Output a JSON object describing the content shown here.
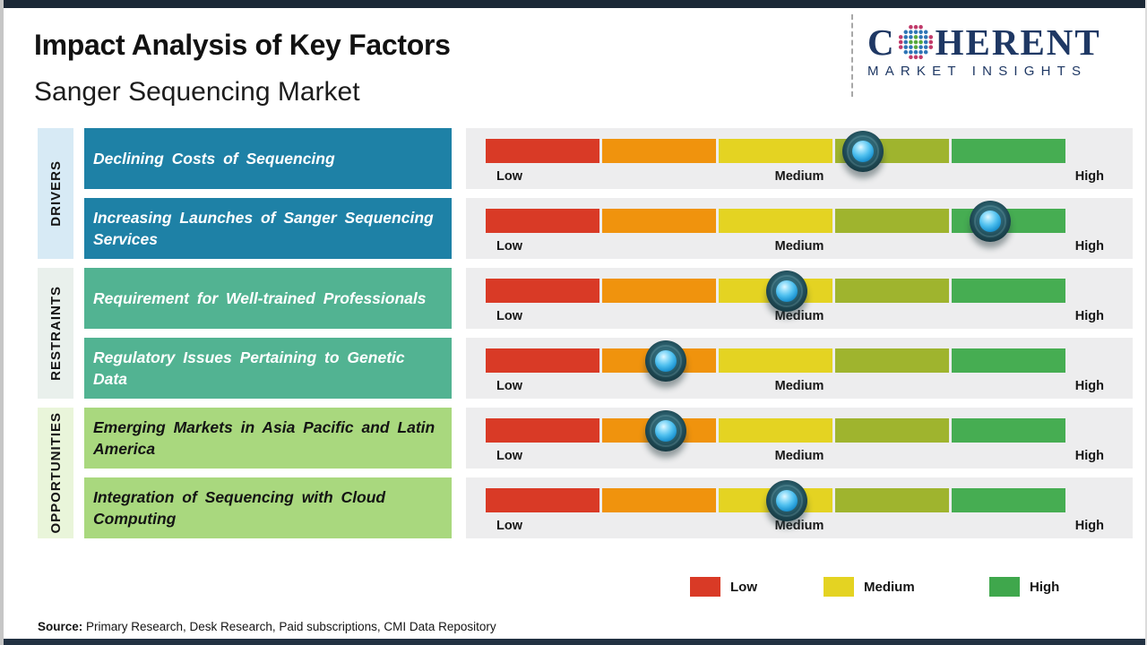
{
  "header": {
    "title": "Impact Analysis of Key Factors",
    "subtitle": "Sanger Sequencing Market"
  },
  "logo": {
    "prefix": "C",
    "suffix": "HERENT",
    "tagline": "MARKET INSIGHTS",
    "color": "#1f3864"
  },
  "chart_data": {
    "type": "table",
    "title": "Impact Analysis of Key Factors",
    "subtitle": "Sanger Sequencing Market",
    "scale_labels": [
      "Low",
      "Medium",
      "High"
    ],
    "segment_colors": [
      "#d93a26",
      "#f0930d",
      "#e4d322",
      "#9fb42e",
      "#46ad52"
    ],
    "rows": [
      {
        "category": "drivers",
        "factor": "Declining Costs of Sequencing",
        "impact_pct": 65,
        "impact_level": "Medium-High"
      },
      {
        "category": "drivers",
        "factor": "Increasing Launches of Sanger Sequencing Services",
        "impact_pct": 87,
        "impact_level": "High"
      },
      {
        "category": "restraints",
        "factor": "Requirement for Well-trained Professionals",
        "impact_pct": 52,
        "impact_level": "Medium"
      },
      {
        "category": "restraints",
        "factor": "Regulatory Issues Pertaining to Genetic Data",
        "impact_pct": 31,
        "impact_level": "Low-Medium"
      },
      {
        "category": "opportunities",
        "factor": "Emerging Markets in Asia Pacific and Latin America",
        "impact_pct": 31,
        "impact_level": "Low-Medium"
      },
      {
        "category": "opportunities",
        "factor": "Integration of Sequencing with Cloud Computing",
        "impact_pct": 52,
        "impact_level": "Medium"
      }
    ]
  },
  "group_styles": {
    "drivers": {
      "label": "DRIVERS",
      "column_bg": "#d7eaf5",
      "box_bg": "#1e81a6",
      "box_text": "#ffffff"
    },
    "restraints": {
      "label": "RESTRAINTS",
      "column_bg": "#e9f0ec",
      "box_bg": "#52b392",
      "box_text": "#ffffff"
    },
    "opportunities": {
      "label": "OPPORTUNITIES",
      "column_bg": "#e9f5da",
      "box_bg": "#a9d87e",
      "box_text": "#141414"
    }
  },
  "legend": [
    {
      "label": "Low",
      "color": "#d93a26"
    },
    {
      "label": "Medium",
      "color": "#e4d322"
    },
    {
      "label": "High",
      "color": "#3fa74c"
    }
  ],
  "footer": {
    "source_label": "Source:",
    "source_text": " Primary Research, Desk Research, Paid subscriptions, CMI Data Repository"
  }
}
